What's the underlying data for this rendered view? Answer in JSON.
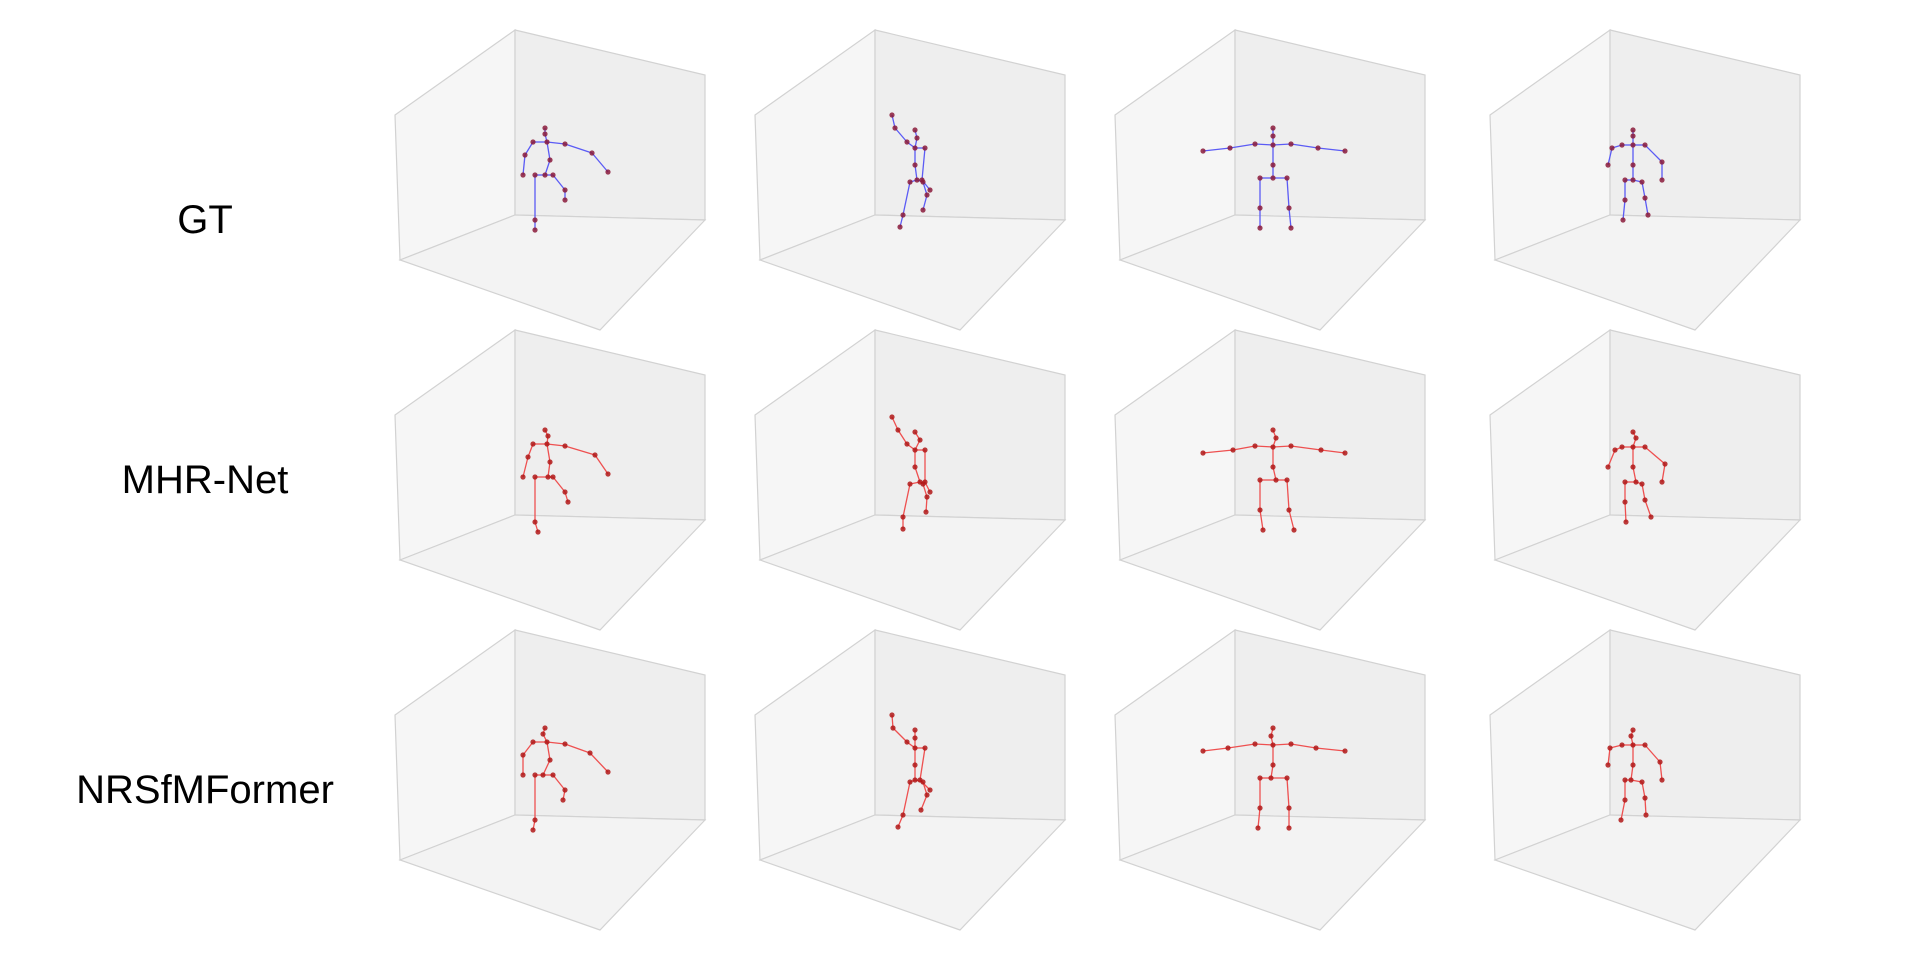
{
  "rows": [
    {
      "label": "GT",
      "color": "#5b5bf5",
      "joint_color": "#8a1a3a"
    },
    {
      "label": "MHR-Net",
      "color": "#ee5050",
      "joint_color": "#b01818"
    },
    {
      "label": "NRSfMFormer",
      "color": "#ee5050",
      "joint_color": "#b01818"
    }
  ],
  "panel_colors": {
    "back_wall": "#eeeeee",
    "side_wall": "#f6f6f6",
    "floor": "#f3f3f3",
    "edge": "#d2d2d2"
  },
  "columns": 4
}
